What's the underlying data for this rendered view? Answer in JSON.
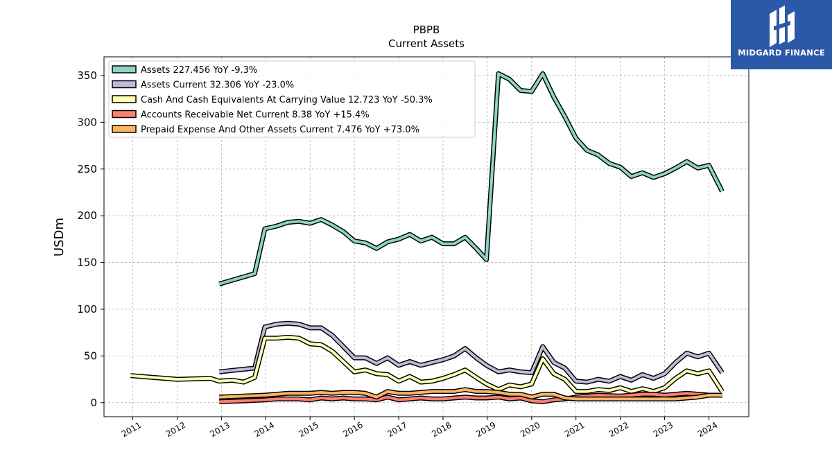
{
  "brand": {
    "name": "MIDGARD FINANCE",
    "color": "#2b58a8"
  },
  "chart_data": {
    "type": "line",
    "title": "PBPB",
    "subtitle": "Current  Assets",
    "ylabel": "USDm",
    "xlabel": "",
    "xlim": [
      2010.35,
      2024.9
    ],
    "ylim": [
      -15,
      370
    ],
    "yticks": [
      0,
      50,
      100,
      150,
      200,
      250,
      300,
      350
    ],
    "xticks": [
      2011,
      2012,
      2013,
      2014,
      2015,
      2016,
      2017,
      2018,
      2019,
      2020,
      2021,
      2022,
      2023,
      2024
    ],
    "grid": true,
    "legend_position": "top-left",
    "series": [
      {
        "name": "Assets",
        "legend": "Assets  227.456 YoY -9.3%",
        "color": "#8dd3c7",
        "x": [
          2012.95,
          2013.75,
          2013.98,
          2014.25,
          2014.5,
          2014.75,
          2015.0,
          2015.25,
          2015.5,
          2015.75,
          2016.0,
          2016.25,
          2016.5,
          2016.75,
          2017.0,
          2017.25,
          2017.5,
          2017.75,
          2018.0,
          2018.25,
          2018.5,
          2018.75,
          2018.98,
          2019.25,
          2019.5,
          2019.75,
          2020.0,
          2020.25,
          2020.5,
          2020.75,
          2021.0,
          2021.25,
          2021.5,
          2021.75,
          2022.0,
          2022.25,
          2022.5,
          2022.75,
          2023.0,
          2023.25,
          2023.5,
          2023.75,
          2024.0,
          2024.3
        ],
        "y": [
          127,
          138,
          186,
          189,
          193,
          194,
          192,
          196,
          190,
          183,
          173,
          171,
          165,
          172,
          175,
          180,
          173,
          177,
          170,
          170,
          177,
          165,
          153,
          352,
          346,
          334,
          333,
          352,
          327,
          306,
          283,
          270,
          265,
          256,
          252,
          242,
          246,
          241,
          245,
          251,
          258,
          251,
          254,
          226
        ]
      },
      {
        "name": "Assets Current",
        "legend": "Assets Current  32.306 YoY -23.0%",
        "color": "#bebada",
        "x": [
          2012.95,
          2013.75,
          2013.98,
          2014.25,
          2014.5,
          2014.75,
          2015.0,
          2015.25,
          2015.5,
          2015.75,
          2016.0,
          2016.25,
          2016.5,
          2016.75,
          2017.0,
          2017.25,
          2017.5,
          2017.75,
          2018.0,
          2018.25,
          2018.5,
          2018.75,
          2018.98,
          2019.25,
          2019.5,
          2019.75,
          2020.0,
          2020.25,
          2020.5,
          2020.75,
          2021.0,
          2021.25,
          2021.5,
          2021.75,
          2022.0,
          2022.25,
          2022.5,
          2022.75,
          2023.0,
          2023.25,
          2023.5,
          2023.75,
          2024.0,
          2024.3
        ],
        "y": [
          33,
          37,
          81,
          84,
          85,
          84,
          80,
          80,
          72,
          60,
          48,
          48,
          42,
          48,
          40,
          44,
          40,
          43,
          46,
          50,
          58,
          48,
          40,
          33,
          35,
          33,
          32,
          60,
          43,
          37,
          23,
          22,
          25,
          23,
          28,
          24,
          30,
          26,
          31,
          43,
          53,
          49,
          53,
          32
        ]
      },
      {
        "name": "Cash And Cash Equivalents At Carrying Value",
        "legend": "Cash And Cash Equivalents At Carrying Value  12.723 YoY -50.3%",
        "color": "#ffffb3",
        "x": [
          2010.95,
          2012.0,
          2012.75,
          2012.95,
          2013.25,
          2013.5,
          2013.75,
          2013.98,
          2014.25,
          2014.5,
          2014.75,
          2015.0,
          2015.25,
          2015.5,
          2015.75,
          2016.0,
          2016.25,
          2016.5,
          2016.75,
          2017.0,
          2017.25,
          2017.5,
          2017.75,
          2018.0,
          2018.25,
          2018.5,
          2018.75,
          2018.98,
          2019.25,
          2019.5,
          2019.75,
          2020.0,
          2020.25,
          2020.5,
          2020.75,
          2021.0,
          2021.25,
          2021.5,
          2021.75,
          2022.0,
          2022.25,
          2022.5,
          2022.75,
          2023.0,
          2023.25,
          2023.5,
          2023.75,
          2024.0,
          2024.3
        ],
        "y": [
          29,
          25,
          26,
          23,
          24,
          22,
          27,
          69,
          69,
          70,
          69,
          63,
          62,
          55,
          44,
          33,
          35,
          31,
          30,
          23,
          28,
          22,
          23,
          26,
          30,
          35,
          27,
          20,
          14,
          19,
          17,
          20,
          47,
          31,
          25,
          12,
          12,
          14,
          13,
          16,
          12,
          15,
          12,
          16,
          26,
          34,
          31,
          34,
          12
        ]
      },
      {
        "name": "Accounts Receivable Net Current",
        "legend": "Accounts Receivable Net Current  8.38 YoY +15.4%",
        "color": "#fb8072",
        "x": [
          2012.95,
          2013.5,
          2013.98,
          2014.25,
          2014.5,
          2014.75,
          2015.0,
          2015.25,
          2015.5,
          2015.75,
          2016.0,
          2016.25,
          2016.5,
          2016.75,
          2017.0,
          2017.25,
          2017.5,
          2017.75,
          2018.0,
          2018.25,
          2018.5,
          2018.75,
          2018.98,
          2019.25,
          2019.5,
          2019.75,
          2020.0,
          2020.25,
          2020.5,
          2020.75,
          2021.0,
          2021.5,
          2022.0,
          2022.25,
          2022.5,
          2022.75,
          2023.0,
          2023.25,
          2023.5,
          2023.75,
          2024.0,
          2024.3
        ],
        "y": [
          1,
          2,
          3,
          4,
          4,
          4,
          3,
          5,
          4,
          5,
          4,
          4,
          3,
          6,
          3,
          4,
          5,
          4,
          4,
          5,
          6,
          5,
          5,
          6,
          4,
          5,
          2,
          1,
          3,
          4,
          6,
          8,
          7,
          8,
          9,
          9,
          8,
          9,
          10,
          9,
          8,
          8
        ]
      },
      {
        "name": "Prepaid Expense And Other Assets Current",
        "legend": "Prepaid Expense And Other Assets Current  7.476 YoY +73.0%",
        "color": "#fdb462",
        "x": [
          2012.95,
          2013.5,
          2013.98,
          2014.25,
          2014.5,
          2014.75,
          2015.0,
          2015.25,
          2015.5,
          2015.75,
          2016.0,
          2016.25,
          2016.5,
          2016.75,
          2017.0,
          2017.25,
          2017.5,
          2017.75,
          2018.0,
          2018.25,
          2018.5,
          2018.75,
          2018.98,
          2019.25,
          2019.5,
          2019.75,
          2020.0,
          2020.25,
          2020.5,
          2020.75,
          2021.0,
          2021.5,
          2022.0,
          2022.25,
          2022.5,
          2022.75,
          2023.0,
          2023.25,
          2023.5,
          2023.75,
          2024.0,
          2024.3
        ],
        "y": [
          6,
          7,
          8,
          9,
          10,
          10,
          10,
          11,
          10,
          11,
          11,
          10,
          6,
          12,
          10,
          10,
          11,
          12,
          12,
          12,
          14,
          12,
          12,
          11,
          9,
          9,
          6,
          9,
          9,
          5,
          4,
          4,
          4,
          4,
          4,
          4,
          4,
          4,
          5,
          6,
          8,
          8
        ]
      }
    ]
  }
}
